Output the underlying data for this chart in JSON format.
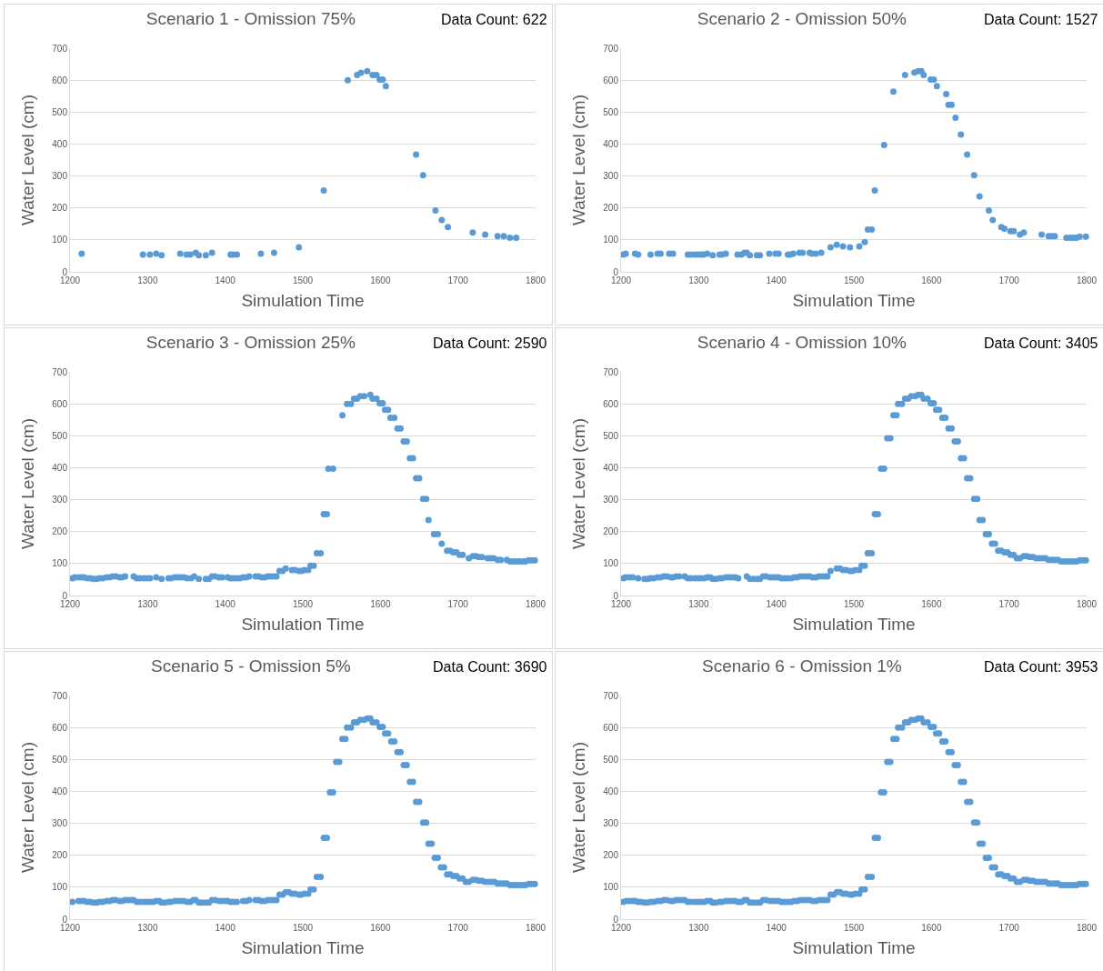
{
  "chart_data": [
    {
      "type": "scatter",
      "title": "Scenario 1 - Omission 75%",
      "annotations": [
        "Data Count: 622"
      ],
      "xlabel": "Simulation Time",
      "ylabel": "Water Level (cm)",
      "color": "#5b9bd5",
      "marker": "circle",
      "grid": "y",
      "xlim": [
        1200,
        1800
      ],
      "xticks": [
        1200,
        1300,
        1400,
        1500,
        1600,
        1700,
        1800
      ],
      "ylim": [
        0,
        700
      ],
      "yticks": [
        0,
        100,
        200,
        300,
        400,
        500,
        600,
        700
      ],
      "x": [
        1215,
        1294,
        1303,
        1311,
        1318,
        1342,
        1350,
        1355,
        1362,
        1366,
        1375,
        1383,
        1407,
        1410,
        1415,
        1446,
        1463,
        1495,
        1527,
        1558,
        1570,
        1575,
        1583,
        1590,
        1595,
        1599,
        1603,
        1607,
        1646,
        1655,
        1671,
        1679,
        1687,
        1719,
        1735,
        1751,
        1759,
        1767,
        1775
      ],
      "values": [
        57,
        54,
        54,
        57,
        52,
        57,
        54,
        54,
        60,
        52,
        52,
        60,
        54,
        54,
        54,
        57,
        60,
        77,
        255,
        600,
        616,
        623,
        628,
        616,
        616,
        602,
        602,
        581,
        367,
        302,
        192,
        162,
        140,
        123,
        117,
        112,
        112,
        107,
        107
      ]
    },
    {
      "type": "scatter",
      "title": "Scenario 2 - Omission 50%",
      "annotations": [
        "Data Count: 1527"
      ],
      "xlabel": "Simulation Time",
      "ylabel": "Water Level (cm)",
      "color": "#5b9bd5",
      "marker": "circle",
      "grid": "y",
      "xlim": [
        1200,
        1800
      ],
      "xticks": [
        1200,
        1300,
        1400,
        1500,
        1600,
        1700,
        1800
      ],
      "ylim": [
        0,
        700
      ],
      "yticks": [
        0,
        100,
        200,
        300,
        400,
        500,
        600,
        700
      ],
      "x": [
        1203,
        1206,
        1218,
        1222,
        1238,
        1247,
        1251,
        1262,
        1267,
        1286,
        1290,
        1295,
        1299,
        1303,
        1306,
        1311,
        1318,
        1327,
        1330,
        1335,
        1350,
        1355,
        1359,
        1362,
        1366,
        1375,
        1379,
        1391,
        1399,
        1403,
        1415,
        1418,
        1422,
        1430,
        1434,
        1443,
        1446,
        1451,
        1458,
        1470,
        1478,
        1486,
        1495,
        1507,
        1514,
        1518,
        1523,
        1527,
        1539,
        1551,
        1566,
        1578,
        1583,
        1587,
        1590,
        1599,
        1603,
        1607,
        1619,
        1622,
        1626,
        1631,
        1638,
        1646,
        1655,
        1662,
        1674,
        1679,
        1690,
        1694,
        1702,
        1706,
        1714,
        1719,
        1742,
        1751,
        1755,
        1759,
        1774,
        1779,
        1783,
        1787,
        1791,
        1799
      ],
      "values": [
        54,
        57,
        57,
        54,
        54,
        57,
        57,
        57,
        57,
        54,
        54,
        54,
        54,
        54,
        54,
        57,
        52,
        54,
        54,
        57,
        54,
        54,
        60,
        60,
        52,
        52,
        52,
        57,
        57,
        57,
        54,
        54,
        57,
        60,
        60,
        60,
        57,
        57,
        60,
        77,
        85,
        80,
        77,
        80,
        93,
        132,
        132,
        255,
        397,
        564,
        616,
        624,
        628,
        628,
        616,
        602,
        602,
        581,
        556,
        523,
        523,
        482,
        430,
        367,
        302,
        236,
        192,
        162,
        140,
        135,
        127,
        127,
        117,
        123,
        117,
        112,
        112,
        112,
        107,
        107,
        107,
        107,
        110,
        110
      ]
    },
    {
      "type": "scatter",
      "title": "Scenario 3 - Omission 25%",
      "annotations": [
        "Data Count: 2590"
      ],
      "xlabel": "Simulation Time",
      "ylabel": "Water Level (cm)",
      "color": "#5b9bd5",
      "marker": "circle",
      "grid": "y",
      "xlim": [
        1200,
        1800
      ],
      "xticks": [
        1200,
        1300,
        1400,
        1500,
        1600,
        1700,
        1800
      ],
      "ylim": [
        0,
        700
      ],
      "yticks": [
        0,
        100,
        200,
        300,
        400,
        500,
        600,
        700
      ],
      "x": [
        1203,
        1206,
        1211,
        1215,
        1218,
        1222,
        1226,
        1230,
        1234,
        1238,
        1242,
        1247,
        1251,
        1255,
        1259,
        1264,
        1267,
        1271,
        1282,
        1286,
        1290,
        1295,
        1299,
        1303,
        1311,
        1318,
        1327,
        1330,
        1335,
        1339,
        1343,
        1347,
        1351,
        1356,
        1360,
        1366,
        1375,
        1379,
        1383,
        1387,
        1392,
        1396,
        1403,
        1407,
        1411,
        1415,
        1419,
        1423,
        1427,
        1431,
        1439,
        1443,
        1447,
        1451,
        1455,
        1459,
        1463,
        1466,
        1470,
        1474,
        1478,
        1486,
        1490,
        1495,
        1498,
        1502,
        1507,
        1510,
        1514,
        1518,
        1523,
        1527,
        1531,
        1533,
        1539,
        1551,
        1557,
        1562,
        1566,
        1570,
        1574,
        1579,
        1587,
        1590,
        1595,
        1599,
        1603,
        1606,
        1610,
        1613,
        1618,
        1622,
        1626,
        1630,
        1634,
        1638,
        1642,
        1646,
        1650,
        1655,
        1659,
        1662,
        1669,
        1674,
        1679,
        1686,
        1690,
        1694,
        1698,
        1702,
        1706,
        1714,
        1719,
        1723,
        1727,
        1731,
        1738,
        1742,
        1746,
        1751,
        1755,
        1763,
        1767,
        1771,
        1775,
        1779,
        1784,
        1787,
        1791,
        1795,
        1799
      ],
      "values": [
        54,
        57,
        57,
        57,
        57,
        54,
        54,
        52,
        52,
        54,
        54,
        57,
        57,
        60,
        60,
        57,
        57,
        60,
        60,
        54,
        54,
        54,
        54,
        54,
        57,
        52,
        54,
        54,
        57,
        57,
        57,
        57,
        54,
        54,
        60,
        52,
        52,
        52,
        60,
        60,
        57,
        57,
        57,
        54,
        54,
        54,
        54,
        57,
        57,
        60,
        60,
        60,
        57,
        57,
        60,
        60,
        60,
        60,
        77,
        77,
        85,
        80,
        80,
        77,
        77,
        80,
        80,
        93,
        93,
        132,
        132,
        255,
        255,
        397,
        397,
        564,
        600,
        600,
        616,
        616,
        624,
        624,
        628,
        616,
        616,
        602,
        602,
        581,
        581,
        556,
        556,
        523,
        523,
        482,
        482,
        430,
        430,
        367,
        367,
        302,
        302,
        236,
        192,
        192,
        162,
        140,
        140,
        135,
        135,
        127,
        127,
        117,
        123,
        123,
        120,
        120,
        117,
        117,
        117,
        112,
        112,
        112,
        107,
        107,
        107,
        107,
        107,
        107,
        110,
        110,
        110
      ]
    },
    {
      "type": "scatter",
      "title": "Scenario 4 - Omission 10%",
      "annotations": [
        "Data Count: 3405"
      ],
      "xlabel": "Simulation Time",
      "ylabel": "Water Level (cm)",
      "color": "#5b9bd5",
      "marker": "circle",
      "grid": "y",
      "xlim": [
        1200,
        1800
      ],
      "xticks": [
        1200,
        1300,
        1400,
        1500,
        1600,
        1700,
        1800
      ],
      "ylim": [
        0,
        700
      ],
      "yticks": [
        0,
        100,
        200,
        300,
        400,
        500,
        600,
        700
      ],
      "x": [
        1203,
        1206,
        1211,
        1215,
        1222,
        1230,
        1234,
        1238,
        1242,
        1247,
        1251,
        1255,
        1259,
        1264,
        1267,
        1271,
        1275,
        1282,
        1286,
        1290,
        1295,
        1299,
        1303,
        1307,
        1311,
        1315,
        1318,
        1322,
        1327,
        1330,
        1335,
        1339,
        1343,
        1347,
        1351,
        1362,
        1366,
        1370,
        1375,
        1379,
        1383,
        1387,
        1392,
        1396,
        1400,
        1403,
        1407,
        1411,
        1415,
        1419,
        1423,
        1427,
        1431,
        1435,
        1439,
        1443,
        1447,
        1451,
        1455,
        1459,
        1463,
        1466,
        1470,
        1478,
        1482,
        1486,
        1490,
        1495,
        1498,
        1502,
        1507,
        1510,
        1514,
        1518,
        1523,
        1527,
        1531,
        1535,
        1539,
        1543,
        1547,
        1551,
        1555,
        1557,
        1562,
        1566,
        1570,
        1574,
        1579,
        1583,
        1587,
        1590,
        1595,
        1599,
        1603,
        1606,
        1610,
        1614,
        1618,
        1622,
        1626,
        1630,
        1634,
        1638,
        1642,
        1646,
        1650,
        1655,
        1659,
        1662,
        1666,
        1670,
        1674,
        1678,
        1682,
        1686,
        1690,
        1694,
        1698,
        1702,
        1706,
        1710,
        1714,
        1719,
        1723,
        1727,
        1731,
        1735,
        1739,
        1743,
        1747,
        1751,
        1755,
        1759,
        1763,
        1767,
        1771,
        1775,
        1779,
        1783,
        1787,
        1791,
        1795,
        1799
      ],
      "values": [
        54,
        57,
        57,
        57,
        54,
        52,
        52,
        54,
        54,
        57,
        57,
        60,
        60,
        57,
        57,
        60,
        60,
        60,
        54,
        54,
        54,
        54,
        54,
        54,
        57,
        57,
        52,
        52,
        54,
        54,
        57,
        57,
        57,
        57,
        54,
        60,
        52,
        52,
        52,
        52,
        60,
        60,
        57,
        57,
        57,
        57,
        54,
        54,
        54,
        54,
        57,
        57,
        60,
        60,
        60,
        60,
        57,
        57,
        60,
        60,
        60,
        60,
        77,
        85,
        85,
        80,
        80,
        77,
        77,
        80,
        80,
        93,
        93,
        132,
        132,
        255,
        255,
        397,
        397,
        492,
        492,
        564,
        564,
        600,
        600,
        616,
        616,
        624,
        624,
        628,
        628,
        616,
        616,
        602,
        602,
        581,
        581,
        556,
        556,
        523,
        523,
        482,
        482,
        430,
        430,
        367,
        367,
        302,
        302,
        236,
        236,
        192,
        192,
        162,
        162,
        140,
        140,
        135,
        135,
        127,
        127,
        117,
        117,
        123,
        123,
        120,
        120,
        117,
        117,
        117,
        117,
        112,
        112,
        112,
        112,
        107,
        107,
        107,
        107,
        107,
        107,
        110,
        110,
        110
      ]
    },
    {
      "type": "scatter",
      "title": "Scenario 5 - Omission 5%",
      "annotations": [
        "Data Count: 3690"
      ],
      "xlabel": "Simulation Time",
      "ylabel": "Water Level (cm)",
      "color": "#5b9bd5",
      "marker": "circle",
      "grid": "y",
      "xlim": [
        1200,
        1800
      ],
      "xticks": [
        1200,
        1300,
        1400,
        1500,
        1600,
        1700,
        1800
      ],
      "ylim": [
        0,
        700
      ],
      "yticks": [
        0,
        100,
        200,
        300,
        400,
        500,
        600,
        700
      ],
      "x": [
        1203,
        1211,
        1215,
        1218,
        1222,
        1226,
        1230,
        1234,
        1238,
        1242,
        1247,
        1251,
        1255,
        1259,
        1264,
        1267,
        1271,
        1275,
        1279,
        1282,
        1286,
        1290,
        1295,
        1299,
        1303,
        1307,
        1311,
        1315,
        1318,
        1322,
        1327,
        1330,
        1335,
        1339,
        1343,
        1347,
        1351,
        1355,
        1359,
        1362,
        1366,
        1370,
        1375,
        1379,
        1383,
        1387,
        1392,
        1396,
        1400,
        1403,
        1407,
        1411,
        1415,
        1423,
        1427,
        1431,
        1439,
        1443,
        1447,
        1451,
        1455,
        1459,
        1463,
        1466,
        1470,
        1474,
        1478,
        1482,
        1486,
        1490,
        1495,
        1498,
        1502,
        1507,
        1510,
        1514,
        1518,
        1523,
        1527,
        1531,
        1535,
        1539,
        1543,
        1547,
        1551,
        1555,
        1557,
        1562,
        1566,
        1570,
        1574,
        1579,
        1583,
        1587,
        1590,
        1595,
        1599,
        1603,
        1606,
        1610,
        1614,
        1618,
        1622,
        1626,
        1630,
        1634,
        1638,
        1642,
        1646,
        1650,
        1655,
        1659,
        1662,
        1666,
        1670,
        1674,
        1678,
        1682,
        1686,
        1690,
        1694,
        1698,
        1702,
        1706,
        1710,
        1714,
        1719,
        1723,
        1727,
        1731,
        1735,
        1739,
        1743,
        1747,
        1751,
        1755,
        1759,
        1763,
        1767,
        1771,
        1775,
        1779,
        1783,
        1787,
        1791,
        1795,
        1799
      ],
      "values": [
        54,
        57,
        57,
        57,
        54,
        54,
        52,
        52,
        54,
        54,
        57,
        57,
        60,
        60,
        57,
        57,
        60,
        60,
        60,
        60,
        54,
        54,
        54,
        54,
        54,
        54,
        57,
        57,
        52,
        52,
        54,
        54,
        57,
        57,
        57,
        57,
        54,
        54,
        60,
        60,
        52,
        52,
        52,
        52,
        60,
        60,
        57,
        57,
        57,
        57,
        54,
        54,
        54,
        57,
        57,
        60,
        60,
        60,
        57,
        57,
        60,
        60,
        60,
        60,
        77,
        77,
        85,
        85,
        80,
        80,
        77,
        77,
        80,
        80,
        93,
        93,
        132,
        132,
        255,
        255,
        397,
        397,
        492,
        492,
        564,
        564,
        600,
        600,
        616,
        616,
        624,
        624,
        628,
        628,
        616,
        616,
        602,
        602,
        581,
        581,
        556,
        556,
        523,
        523,
        482,
        482,
        430,
        430,
        367,
        367,
        302,
        302,
        236,
        236,
        192,
        192,
        162,
        162,
        140,
        140,
        135,
        135,
        127,
        127,
        117,
        117,
        123,
        123,
        120,
        120,
        117,
        117,
        117,
        117,
        112,
        112,
        112,
        112,
        107,
        107,
        107,
        107,
        107,
        107,
        110,
        110,
        110
      ]
    },
    {
      "type": "scatter",
      "title": "Scenario 6 - Omission 1%",
      "annotations": [
        "Data Count: 3953"
      ],
      "xlabel": "Simulation Time",
      "ylabel": "Water Level (cm)",
      "color": "#5b9bd5",
      "marker": "circle",
      "grid": "y",
      "xlim": [
        1200,
        1800
      ],
      "xticks": [
        1200,
        1300,
        1400,
        1500,
        1600,
        1700,
        1800
      ],
      "ylim": [
        0,
        700
      ],
      "yticks": [
        0,
        100,
        200,
        300,
        400,
        500,
        600,
        700
      ],
      "x": [
        1203,
        1207,
        1211,
        1215,
        1218,
        1222,
        1226,
        1230,
        1234,
        1238,
        1242,
        1247,
        1251,
        1255,
        1259,
        1264,
        1267,
        1271,
        1275,
        1279,
        1282,
        1286,
        1290,
        1295,
        1299,
        1303,
        1307,
        1311,
        1315,
        1318,
        1322,
        1327,
        1330,
        1335,
        1339,
        1343,
        1347,
        1351,
        1355,
        1359,
        1362,
        1366,
        1370,
        1375,
        1379,
        1383,
        1387,
        1392,
        1396,
        1400,
        1403,
        1407,
        1411,
        1415,
        1419,
        1423,
        1427,
        1431,
        1435,
        1439,
        1443,
        1447,
        1451,
        1455,
        1459,
        1463,
        1466,
        1470,
        1474,
        1478,
        1482,
        1486,
        1490,
        1495,
        1498,
        1502,
        1507,
        1510,
        1514,
        1518,
        1523,
        1527,
        1531,
        1535,
        1539,
        1543,
        1547,
        1551,
        1555,
        1557,
        1562,
        1566,
        1570,
        1574,
        1579,
        1583,
        1587,
        1590,
        1595,
        1599,
        1603,
        1606,
        1610,
        1614,
        1618,
        1622,
        1626,
        1630,
        1634,
        1638,
        1642,
        1646,
        1650,
        1655,
        1659,
        1662,
        1666,
        1670,
        1674,
        1678,
        1682,
        1686,
        1690,
        1694,
        1698,
        1702,
        1706,
        1710,
        1714,
        1719,
        1723,
        1727,
        1731,
        1735,
        1739,
        1743,
        1747,
        1751,
        1755,
        1759,
        1763,
        1767,
        1771,
        1775,
        1779,
        1783,
        1787,
        1791,
        1795,
        1799
      ],
      "values": [
        54,
        57,
        57,
        57,
        57,
        54,
        54,
        52,
        52,
        54,
        54,
        57,
        57,
        60,
        60,
        57,
        57,
        60,
        60,
        60,
        60,
        54,
        54,
        54,
        54,
        54,
        54,
        57,
        57,
        52,
        52,
        54,
        54,
        57,
        57,
        57,
        57,
        54,
        54,
        60,
        60,
        52,
        52,
        52,
        52,
        60,
        60,
        57,
        57,
        57,
        57,
        54,
        54,
        54,
        54,
        57,
        57,
        60,
        60,
        60,
        60,
        57,
        57,
        60,
        60,
        60,
        60,
        77,
        77,
        85,
        85,
        80,
        80,
        77,
        77,
        80,
        80,
        93,
        93,
        132,
        132,
        255,
        255,
        397,
        397,
        492,
        492,
        564,
        564,
        600,
        600,
        616,
        616,
        624,
        624,
        628,
        628,
        616,
        616,
        602,
        602,
        581,
        581,
        556,
        556,
        523,
        523,
        482,
        482,
        430,
        430,
        367,
        367,
        302,
        302,
        236,
        236,
        192,
        192,
        162,
        162,
        140,
        140,
        135,
        135,
        127,
        127,
        117,
        117,
        123,
        123,
        120,
        120,
        117,
        117,
        117,
        117,
        112,
        112,
        112,
        112,
        107,
        107,
        107,
        107,
        107,
        107,
        110,
        110,
        110
      ]
    }
  ]
}
